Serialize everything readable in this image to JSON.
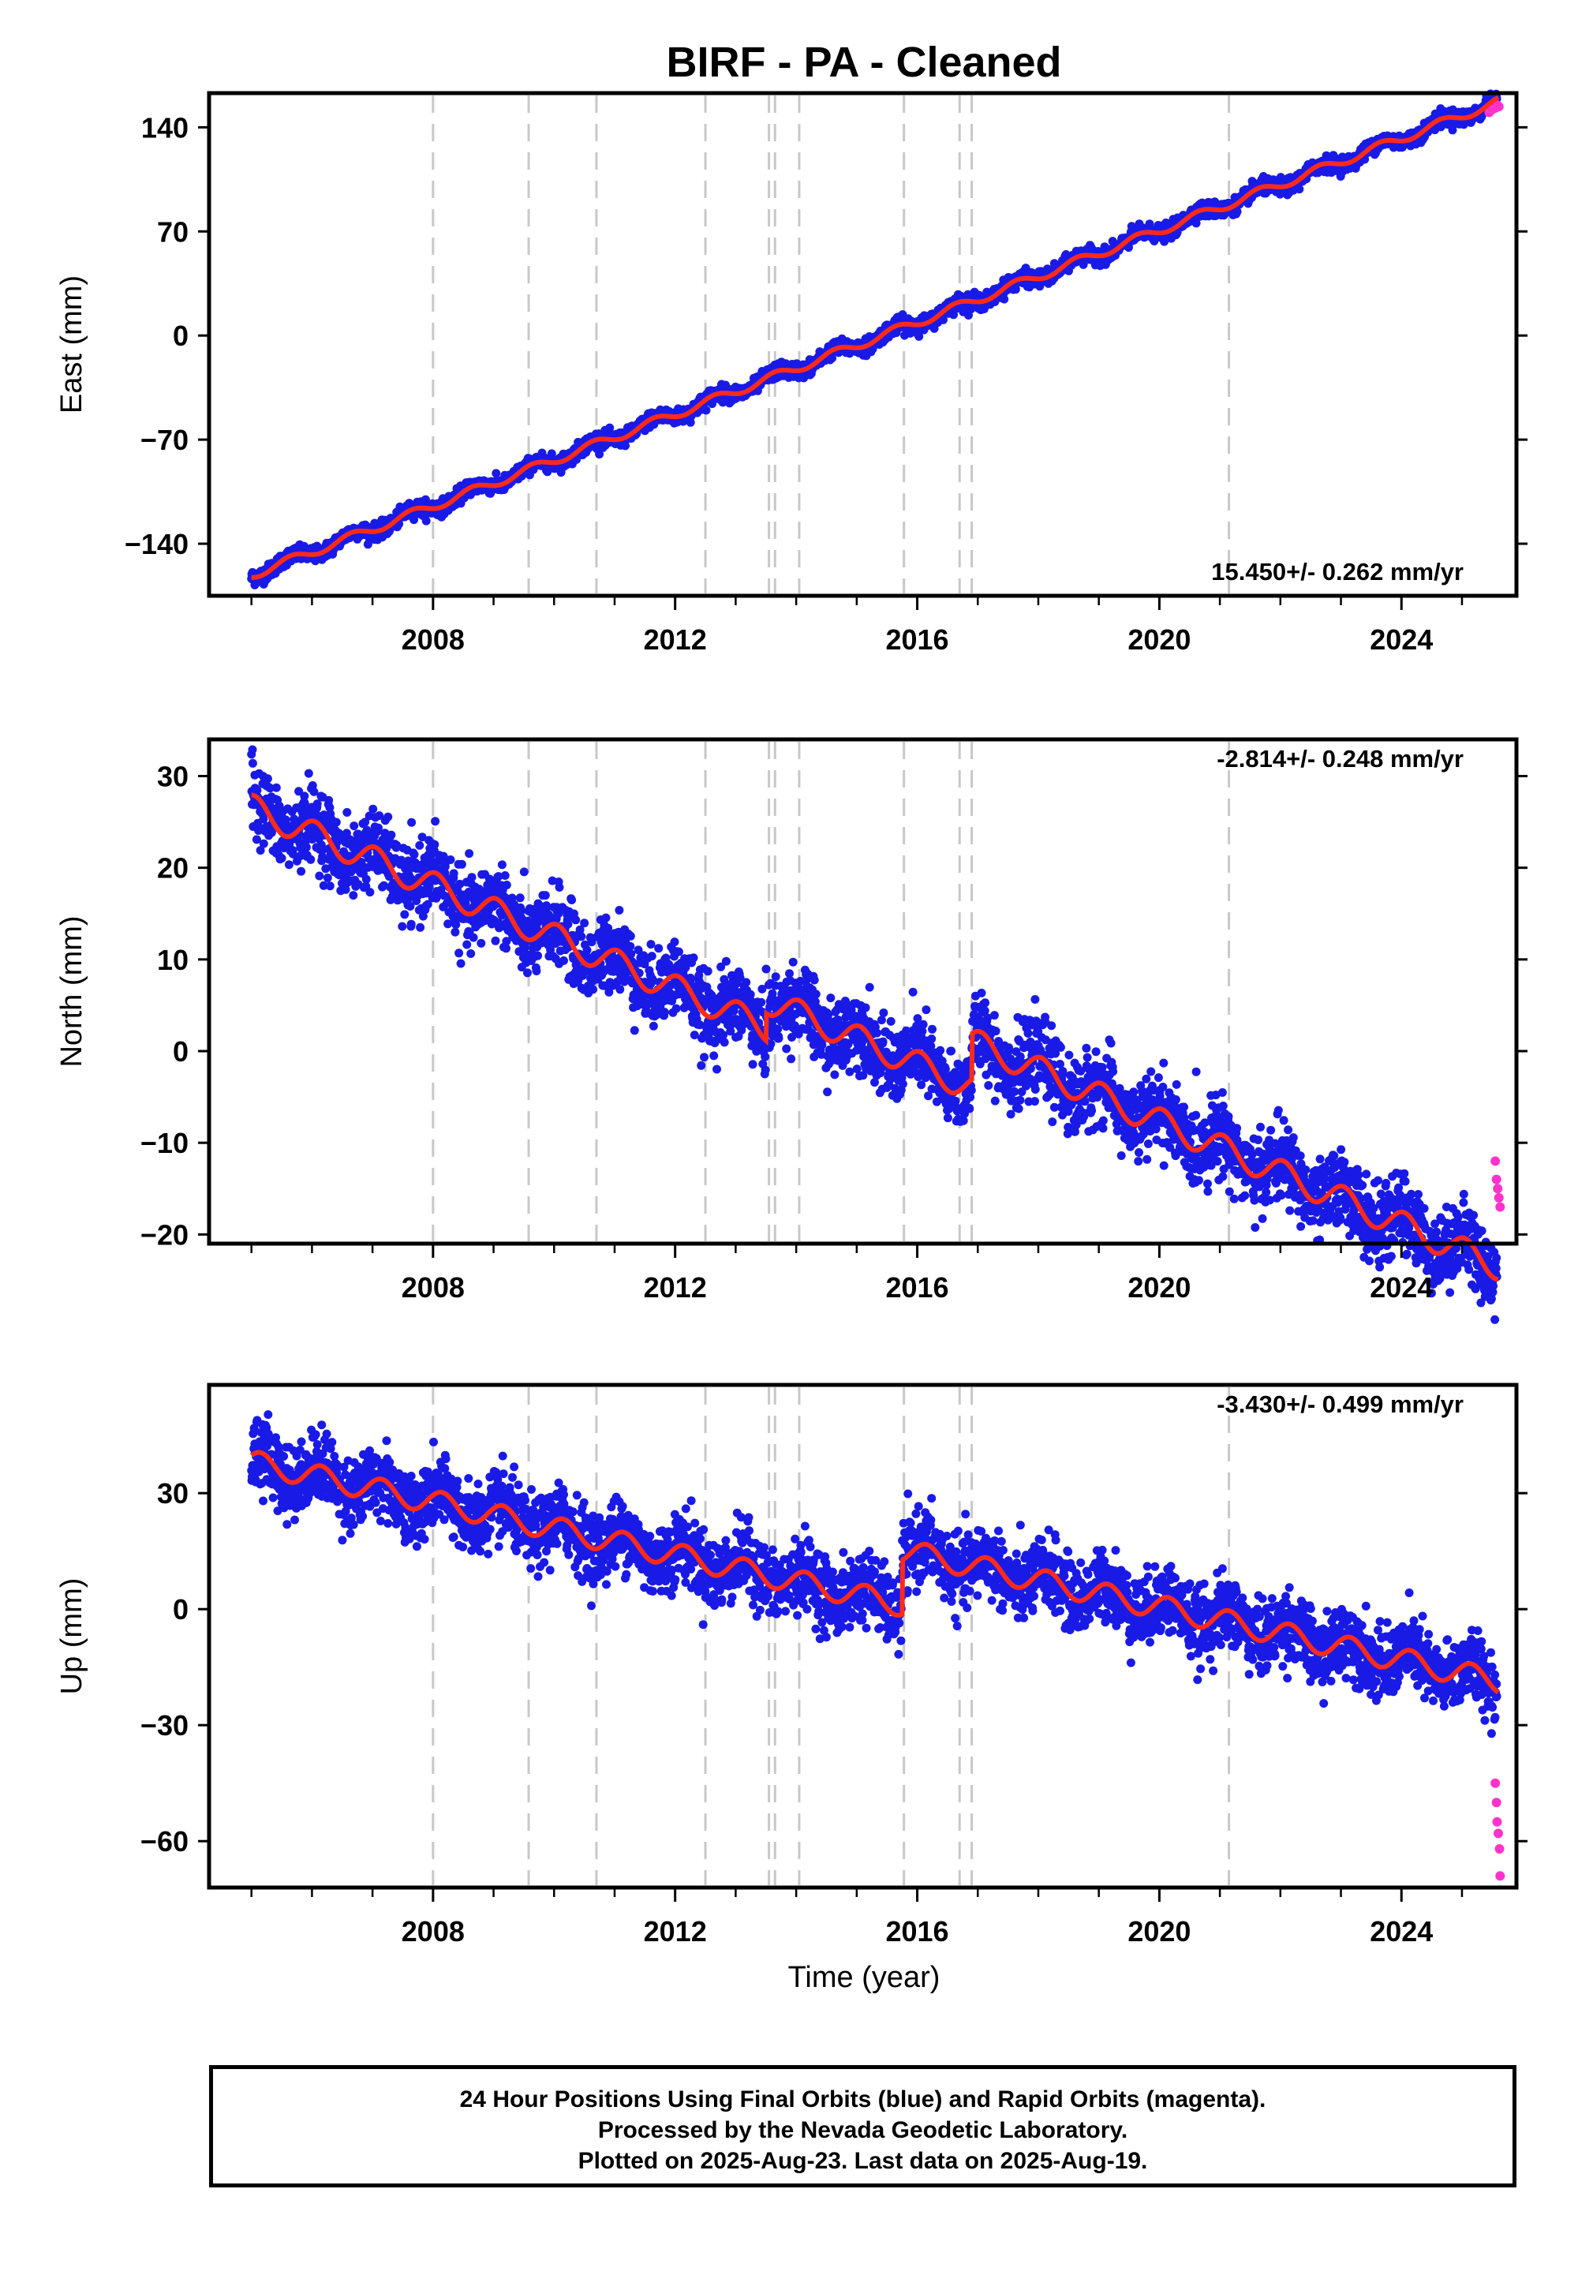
{
  "title": "BIRF  - PA - Cleaned",
  "xlabel": "Time (year)",
  "footer": {
    "line1": "24 Hour Positions Using Final Orbits (blue) and Rapid Orbits (magenta).",
    "line2": "Processed by the Nevada Geodetic Laboratory.",
    "line3": "Plotted on 2025-Aug-23. Last data on 2025-Aug-19."
  },
  "colors": {
    "final": "#1a1ae6",
    "rapid": "#ff33cc",
    "model": "#ff2a1a",
    "steps": "#c8c8c8"
  },
  "chart_data": [
    {
      "type": "scatter",
      "component": "East",
      "ylabel": "East (mm)",
      "rate": "15.450+/- 0.262 mm/yr",
      "xlim": [
        2004.3,
        2025.9
      ],
      "ylim": [
        -175,
        163
      ],
      "yticks": [
        140,
        70,
        0,
        -70,
        -140
      ],
      "xticks": [
        2008,
        2012,
        2016,
        2020,
        2024
      ],
      "trend": {
        "t0": 2005.0,
        "v0": -161,
        "rate": 15.45,
        "annual_amp": 3.0,
        "annual_phase": 0.6,
        "scatter": 2.5
      },
      "steps": [],
      "rapid_points": [
        [
          2025.45,
          150
        ],
        [
          2025.5,
          152
        ],
        [
          2025.55,
          153
        ],
        [
          2025.58,
          155
        ],
        [
          2025.61,
          154
        ]
      ]
    },
    {
      "type": "scatter",
      "component": "North",
      "ylabel": "North (mm)",
      "rate": "-2.814+/- 0.248 mm/yr",
      "xlim": [
        2004.3,
        2025.9
      ],
      "ylim": [
        -21,
        34
      ],
      "yticks": [
        30,
        20,
        10,
        0,
        -10,
        -20
      ],
      "xticks": [
        2008,
        2012,
        2016,
        2020,
        2024
      ],
      "trend": {
        "t0": 2005.0,
        "v0": 26.5,
        "rate": -2.814,
        "annual_amp": 1.5,
        "annual_phase": 0.2,
        "scatter": 2.0
      },
      "steps": [
        [
          2013.5,
          3.0
        ],
        [
          2016.9,
          5.0
        ]
      ],
      "rapid_points": [
        [
          2025.55,
          -12
        ],
        [
          2025.57,
          -14
        ],
        [
          2025.59,
          -15
        ],
        [
          2025.61,
          -16
        ],
        [
          2025.63,
          -17
        ]
      ]
    },
    {
      "type": "scatter",
      "component": "Up",
      "ylabel": "Up (mm)",
      "rate": "-3.430+/- 0.499 mm/yr",
      "xlim": [
        2004.3,
        2025.9
      ],
      "ylim": [
        -72,
        58
      ],
      "yticks": [
        30,
        0,
        -30,
        -60
      ],
      "xticks": [
        2008,
        2012,
        2016,
        2020,
        2024
      ],
      "trend": {
        "t0": 2005.0,
        "v0": 38,
        "rate": -3.43,
        "annual_amp": 3.0,
        "annual_phase": 0.1,
        "scatter": 4.5
      },
      "steps": [
        [
          2015.75,
          14.0
        ]
      ],
      "rapid_points": [
        [
          2025.55,
          -45
        ],
        [
          2025.57,
          -50
        ],
        [
          2025.58,
          -55
        ],
        [
          2025.6,
          -58
        ],
        [
          2025.62,
          -62
        ],
        [
          2025.63,
          -69
        ]
      ]
    }
  ],
  "vertical_markers": [
    2008.0,
    2009.58,
    2010.7,
    2012.5,
    2013.55,
    2013.65,
    2014.05,
    2015.78,
    2016.7,
    2016.9,
    2021.15
  ]
}
